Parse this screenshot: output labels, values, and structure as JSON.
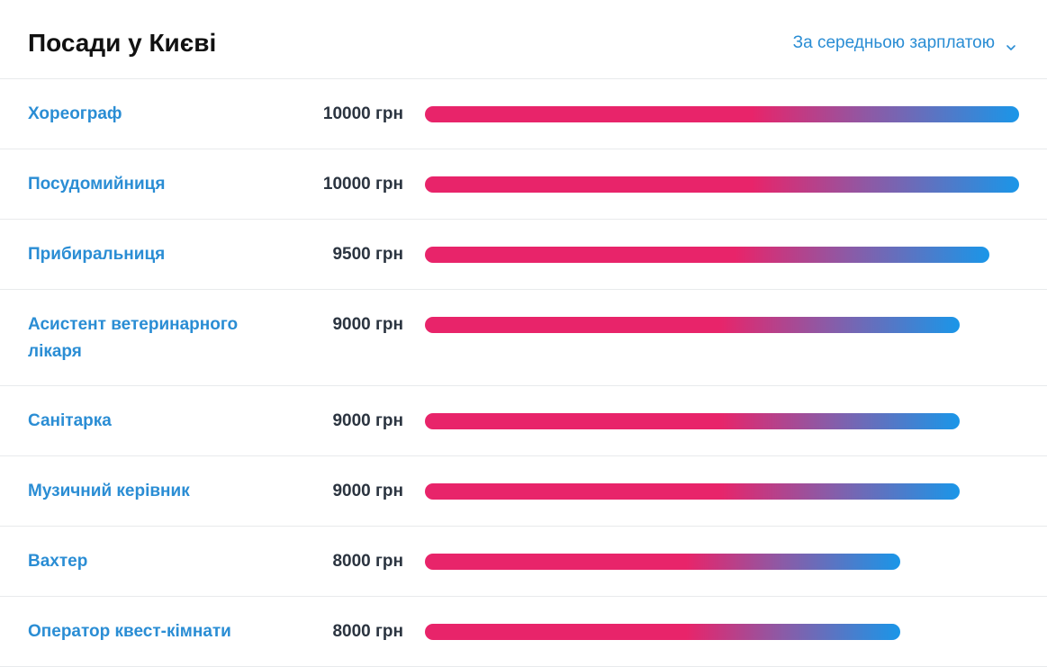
{
  "header": {
    "title": "Посади у Києві",
    "sort_label": "За середньою зарплатою",
    "sort_icon": "chevron-down-icon"
  },
  "colors": {
    "link": "#2a8dd4",
    "bar_start": "#e8246a",
    "bar_end": "#1a96e8"
  },
  "chart_data": {
    "type": "bar",
    "orientation": "horizontal",
    "unit": "грн",
    "xlim": [
      0,
      10000
    ],
    "categories": [
      "Хореограф",
      "Посудомийниця",
      "Прибиральниця",
      "Асистент ветеринарного лікаря",
      "Санітарка",
      "Музичний керівник",
      "Вахтер",
      "Оператор квест-кімнати"
    ],
    "values": [
      10000,
      10000,
      9500,
      9000,
      9000,
      9000,
      8000,
      8000
    ],
    "labels": [
      "10000 грн",
      "10000 грн",
      "9500 грн",
      "9000 грн",
      "9000 грн",
      "9000 грн",
      "8000 грн",
      "8000 грн"
    ]
  }
}
